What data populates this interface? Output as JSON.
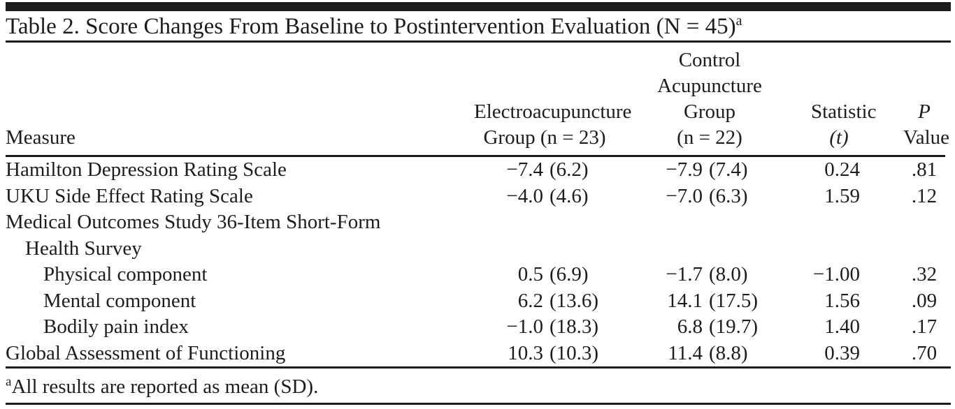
{
  "doc": {
    "title": "Table 2. Score Changes From Baseline to Postintervention Evaluation (N = 45)",
    "title_footnote_marker": "a",
    "footnote_marker": "a",
    "footnote_text": "All results are reported as mean (SD).",
    "colors": {
      "text": "#1d1d1d",
      "rule": "#1c1c1c",
      "background": "#ffffff"
    }
  },
  "table": {
    "header": {
      "measure": "Measure",
      "ea_lines": [
        "Electroacupuncture",
        "Group (n = 23)"
      ],
      "control_lines": [
        "Control",
        "Acupuncture",
        "Group",
        "(n = 22)"
      ],
      "statistic_lines": [
        "Statistic",
        "(t)"
      ],
      "p_lines": [
        "P",
        "Value"
      ]
    },
    "rows": [
      {
        "label": "Hamilton Depression Rating Scale",
        "ea_mean": "−7.4",
        "ea_sd": "(6.2)",
        "control_mean": "−7.9",
        "control_sd": "(7.4)",
        "t": "0.24",
        "p": ".81"
      },
      {
        "label": "UKU Side Effect Rating Scale",
        "ea_mean": "−4.0",
        "ea_sd": "(4.6)",
        "control_mean": "−7.0",
        "control_sd": "(6.3)",
        "t": "1.59",
        "p": ".12"
      },
      {
        "label": "Medical Outcomes Study 36-Item Short-Form",
        "label_line2": "Health Survey"
      },
      {
        "label": "Physical component",
        "ea_mean": "0.5",
        "ea_sd": "(6.9)",
        "control_mean": "−1.7",
        "control_sd": "(8.0)",
        "t": "−1.00",
        "p": ".32"
      },
      {
        "label": "Mental component",
        "ea_mean": "6.2",
        "ea_sd": "(13.6)",
        "control_mean": "14.1",
        "control_sd": "(17.5)",
        "t": "1.56",
        "p": ".09"
      },
      {
        "label": "Bodily pain index",
        "ea_mean": "−1.0",
        "ea_sd": "(18.3)",
        "control_mean": "6.8",
        "control_sd": "(19.7)",
        "t": "1.40",
        "p": ".17"
      },
      {
        "label": "Global Assessment of Functioning",
        "ea_mean": "10.3",
        "ea_sd": "(10.3)",
        "control_mean": "11.4",
        "control_sd": "(8.8)",
        "t": "0.39",
        "p": ".70"
      }
    ]
  }
}
